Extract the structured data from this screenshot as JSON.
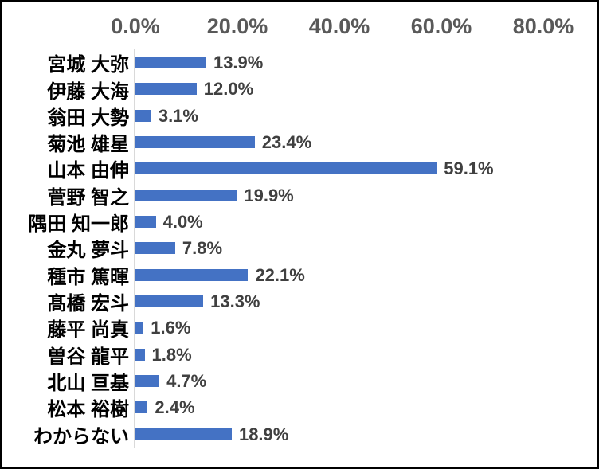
{
  "chart_data": {
    "type": "bar",
    "orientation": "horizontal",
    "title": "",
    "xlabel": "",
    "ylabel": "",
    "xlim": [
      0,
      80
    ],
    "xticks": [
      0,
      20,
      40,
      60,
      80
    ],
    "xtick_labels": [
      "0.0%",
      "20.0%",
      "40.0%",
      "60.0%",
      "80.0%"
    ],
    "grid": false,
    "legend": false,
    "categories": [
      "宮城 大弥",
      "伊藤 大海",
      "翁田 大勢",
      "菊池 雄星",
      "山本 由伸",
      "菅野 智之",
      "隅田 知一郎",
      "金丸 夢斗",
      "種市 篤暉",
      "髙橋 宏斗",
      "藤平 尚真",
      "曽谷 龍平",
      "北山 亘基",
      "松本 裕樹",
      "わからない"
    ],
    "values": [
      13.9,
      12.0,
      3.1,
      23.4,
      59.1,
      19.9,
      4.0,
      7.8,
      22.1,
      13.3,
      1.6,
      1.8,
      4.7,
      2.4,
      18.9
    ],
    "value_labels": [
      "13.9%",
      "12.0%",
      "3.1%",
      "23.4%",
      "59.1%",
      "19.9%",
      "4.0%",
      "7.8%",
      "22.1%",
      "13.3%",
      "1.6%",
      "1.8%",
      "4.7%",
      "2.4%",
      "18.9%"
    ],
    "colors": {
      "bar": "#4472C4",
      "axis_line": "#d9d9d9",
      "tick_label": "#595959",
      "data_label": "#404040",
      "category_label": "#000000",
      "frame_border": "#000000",
      "background": "#ffffff"
    }
  }
}
